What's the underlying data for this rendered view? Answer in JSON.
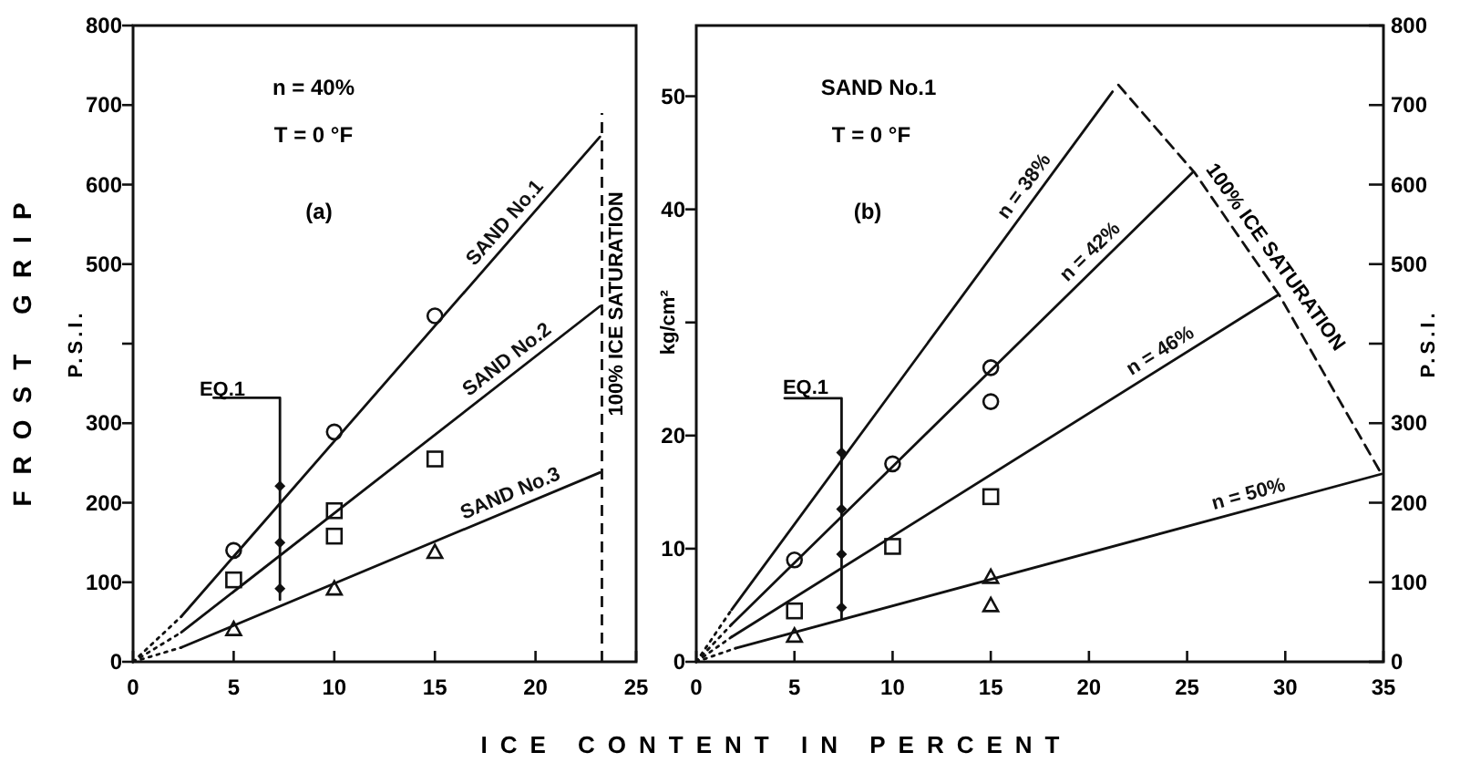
{
  "chart_data": [
    {
      "type": "line",
      "xlabel": "ICE CONTENT IN PERCENT",
      "ylabel": "P.S.I.",
      "xlim": [
        0,
        25
      ],
      "xticks": [
        0,
        5,
        10,
        15,
        20,
        25
      ],
      "ylim": [
        0,
        800
      ],
      "yticks": [
        0,
        100,
        200,
        300,
        {
          "value": 400,
          "label": null
        },
        500,
        600,
        700,
        800
      ],
      "grid": false,
      "annotations": [
        "n = 40%",
        "T = 0 °F",
        "(a)",
        "FROST GRIP",
        "EQ.1"
      ],
      "ref_lines": [
        {
          "axis": "x",
          "value": 23.3,
          "label": "100% ICE SATURATION",
          "line_style": "dashed",
          "color": "#111111"
        }
      ],
      "series": [
        {
          "name": "SAND No.1",
          "color": "#111111",
          "line_style": "solid",
          "x": [
            2.4,
            23.2
          ],
          "values": [
            57,
            660
          ]
        },
        {
          "name": "SAND No.2",
          "color": "#111111",
          "line_style": "solid",
          "x": [
            2.4,
            23.2
          ],
          "values": [
            37,
            447
          ]
        },
        {
          "name": "SAND No.3",
          "color": "#111111",
          "line_style": "solid",
          "x": [
            2.4,
            23.2
          ],
          "values": [
            18,
            238
          ]
        },
        {
          "type": "line",
          "color": "#111111",
          "line_style": "dotted",
          "x": [
            0,
            2.4
          ],
          "values": [
            0,
            57
          ]
        },
        {
          "type": "line",
          "color": "#111111",
          "line_style": "dotted",
          "x": [
            0,
            2.4
          ],
          "values": [
            0,
            37
          ]
        },
        {
          "type": "line",
          "color": "#111111",
          "line_style": "dotted",
          "x": [
            0,
            2.4
          ],
          "values": [
            0,
            18
          ]
        },
        {
          "type": "line",
          "color": "#111111",
          "line_style": "solid",
          "x": [
            4.0,
            7.3,
            7.3
          ],
          "values": [
            332,
            332,
            78
          ]
        },
        {
          "type": "scatter",
          "color": "#111111",
          "marker": "circle",
          "x": [
            5,
            10,
            15
          ],
          "values": [
            140,
            289,
            435
          ]
        },
        {
          "type": "scatter",
          "color": "#111111",
          "marker": "square",
          "x": [
            5,
            10,
            10,
            15
          ],
          "values": [
            103,
            190,
            158,
            255
          ]
        },
        {
          "type": "scatter",
          "color": "#111111",
          "marker": "triangle",
          "x": [
            5,
            10,
            15
          ],
          "values": [
            41,
            92,
            138
          ]
        },
        {
          "type": "scatter",
          "color": "#111111",
          "marker": "diamond",
          "x": [
            7.3,
            7.3,
            7.3
          ],
          "values": [
            221,
            150,
            92
          ]
        }
      ]
    },
    {
      "type": "line",
      "ylabel": "kg/cm²",
      "y2label": "P.S.I.",
      "xlim": [
        0,
        35
      ],
      "xticks": [
        0,
        5,
        10,
        15,
        20,
        25,
        30,
        35
      ],
      "ylim": [
        0,
        56.25
      ],
      "yticks": [
        0,
        10,
        20,
        {
          "value": 30,
          "label": null
        },
        40,
        50
      ],
      "y2lim": [
        0,
        800
      ],
      "y2ticks": [
        0,
        100,
        200,
        300,
        {
          "value": 400,
          "label": null
        },
        500,
        600,
        700,
        800
      ],
      "grid": false,
      "annotations": [
        "SAND No.1",
        "T = 0 °F",
        "(b)",
        "EQ.1",
        "100% ICE SATURATION"
      ],
      "series": [
        {
          "name": "n = 38%",
          "color": "#111111",
          "line_style": "solid",
          "x": [
            1.8,
            21.2
          ],
          "values": [
            4.6,
            50.4
          ]
        },
        {
          "name": "n = 42%",
          "color": "#111111",
          "line_style": "solid",
          "x": [
            1.8,
            25.3
          ],
          "values": [
            3.3,
            43.3
          ]
        },
        {
          "name": "n = 46%",
          "color": "#111111",
          "line_style": "solid",
          "x": [
            1.8,
            29.6
          ],
          "values": [
            2.2,
            32.4
          ]
        },
        {
          "name": "n = 50%",
          "color": "#111111",
          "line_style": "solid",
          "x": [
            2,
            34.9
          ],
          "values": [
            1.2,
            16.6
          ]
        },
        {
          "type": "line",
          "color": "#111111",
          "line_style": "dotted",
          "x": [
            0,
            1.8
          ],
          "values": [
            0,
            4.6
          ]
        },
        {
          "type": "line",
          "color": "#111111",
          "line_style": "dotted",
          "x": [
            0,
            1.8
          ],
          "values": [
            0,
            3.3
          ]
        },
        {
          "type": "line",
          "color": "#111111",
          "line_style": "dotted",
          "x": [
            0,
            1.8
          ],
          "values": [
            0,
            2.2
          ]
        },
        {
          "type": "line",
          "color": "#111111",
          "line_style": "dotted",
          "x": [
            0,
            2
          ],
          "values": [
            0,
            1.2
          ]
        },
        {
          "type": "line",
          "color": "#111111",
          "line_style": "dashed",
          "x": [
            21.5,
            25.4,
            29.7,
            34.9
          ],
          "values": [
            51,
            43.2,
            32.4,
            16.6
          ]
        },
        {
          "type": "line",
          "color": "#111111",
          "line_style": "solid",
          "x": [
            4.5,
            7.4,
            7.4
          ],
          "values": [
            23.3,
            23.3,
            3.8
          ]
        },
        {
          "type": "scatter",
          "color": "#111111",
          "marker": "circle",
          "x": [
            5,
            10,
            15,
            15
          ],
          "values": [
            9,
            17.5,
            26,
            23
          ]
        },
        {
          "type": "scatter",
          "color": "#111111",
          "marker": "square",
          "x": [
            5,
            10,
            15
          ],
          "values": [
            4.5,
            10.2,
            14.6
          ]
        },
        {
          "type": "scatter",
          "color": "#111111",
          "marker": "triangle",
          "x": [
            5,
            15,
            15
          ],
          "values": [
            2.3,
            7.5,
            5
          ]
        },
        {
          "type": "scatter",
          "color": "#111111",
          "marker": "diamond",
          "x": [
            7.4,
            7.4,
            7.4,
            7.4
          ],
          "values": [
            18.5,
            13.5,
            9.5,
            4.8
          ]
        }
      ]
    }
  ]
}
